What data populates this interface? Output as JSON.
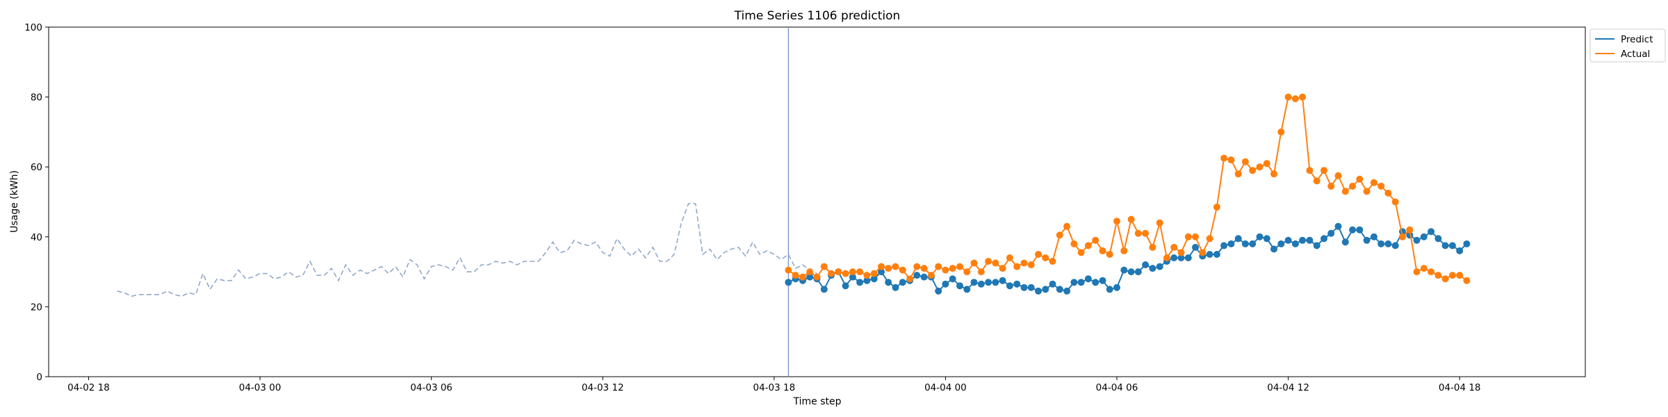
{
  "chart_data": {
    "type": "line",
    "title": "Time Series 1106 prediction",
    "xlabel": "Time step",
    "ylabel": "Usage (kWh)",
    "ylim": [
      0,
      100
    ],
    "yticks": [
      0,
      20,
      40,
      60,
      80,
      100
    ],
    "xlim": [
      "2024-04-02 16:36",
      "2024-04-04 22:24"
    ],
    "xticks": [
      {
        "t": "2024-04-02 18:00",
        "label": "04-02 18"
      },
      {
        "t": "2024-04-03 00:00",
        "label": "04-03 00"
      },
      {
        "t": "2024-04-03 06:00",
        "label": "04-03 06"
      },
      {
        "t": "2024-04-03 12:00",
        "label": "04-03 12"
      },
      {
        "t": "2024-04-03 18:00",
        "label": "04-03 18"
      },
      {
        "t": "2024-04-04 00:00",
        "label": "04-04 00"
      },
      {
        "t": "2024-04-04 06:00",
        "label": "04-04 06"
      },
      {
        "t": "2024-04-04 12:00",
        "label": "04-04 12"
      },
      {
        "t": "2024-04-04 18:00",
        "label": "04-04 18"
      }
    ],
    "vline": "2024-04-03 18:30",
    "legend_position": "upper-right-outside",
    "history": {
      "start": "2024-04-02 19:00",
      "step_minutes": 15,
      "color": "#8fa8c8",
      "style": "dashed",
      "values": [
        24.5,
        24,
        23,
        23.5,
        23.5,
        23.5,
        23.5,
        24.5,
        23.5,
        23,
        24,
        23.5,
        29.5,
        25,
        28,
        27.5,
        27.5,
        30.5,
        28,
        28.5,
        29.5,
        29.5,
        28,
        28.5,
        30,
        28.5,
        29,
        33,
        29,
        29,
        31,
        27.5,
        32,
        29,
        30.5,
        29.5,
        30.5,
        31.5,
        29.5,
        31.5,
        28.5,
        33.5,
        32,
        28,
        31.5,
        32,
        31.5,
        30.5,
        34,
        30,
        30,
        32,
        32,
        33,
        32.5,
        33,
        32,
        33,
        33,
        33,
        35.5,
        38.5,
        35.5,
        36,
        39,
        38,
        37.5,
        38.5,
        35.5,
        34.5,
        39.5,
        36.5,
        34.5,
        36.5,
        34,
        37,
        33,
        33,
        35,
        44,
        49.5,
        49.5,
        35,
        36.5,
        33.5,
        35.5,
        36.5,
        37,
        34.5,
        38.5,
        35,
        36,
        35,
        33.5,
        35,
        31,
        32,
        30.5,
        29.5
      ]
    },
    "series": [
      {
        "name": "Predict",
        "color": "#1f77b4",
        "start": "2024-04-03 18:30",
        "step_minutes": 15,
        "values": [
          27,
          28,
          27.5,
          28.5,
          28,
          25,
          29,
          30,
          26,
          28.5,
          27,
          27.5,
          28,
          30,
          27,
          25.5,
          27,
          27.5,
          29,
          28.5,
          28.5,
          24.5,
          26.5,
          28,
          26,
          25,
          27,
          26.5,
          27,
          27,
          27.5,
          26,
          26.5,
          25.5,
          25.5,
          24.5,
          25,
          26.5,
          25,
          24.5,
          27,
          27,
          28,
          27,
          27.5,
          25,
          25.5,
          30.5,
          30,
          30,
          32,
          31,
          31.5,
          33,
          34,
          34,
          34,
          37,
          34.5,
          35,
          35,
          37.5,
          38,
          39.5,
          38,
          38,
          40,
          39.5,
          36.5,
          38,
          39,
          38,
          39,
          39,
          37.5,
          39.5,
          41,
          43,
          38.5,
          42,
          42,
          39,
          40,
          38,
          38,
          37.5,
          41.5,
          40.5,
          39,
          40,
          41.5,
          39.5,
          37.5,
          37.5,
          36,
          38
        ]
      },
      {
        "name": "Actual",
        "color": "#ff7f0e",
        "start": "2024-04-03 18:30",
        "step_minutes": 15,
        "values": [
          30.5,
          29,
          28.5,
          30,
          28.5,
          31.5,
          29.5,
          30,
          29.5,
          30,
          30,
          29,
          29.5,
          31.5,
          31,
          31.5,
          30.5,
          28,
          31.5,
          31,
          29,
          31.5,
          30.5,
          31,
          31.5,
          30,
          32.5,
          30,
          33,
          32.5,
          31,
          34,
          31.5,
          32.5,
          32,
          35,
          34,
          33,
          40.5,
          43,
          38,
          35.5,
          37.5,
          39,
          36,
          35,
          44.5,
          36,
          45,
          41,
          41,
          37,
          44,
          34,
          37,
          35.5,
          40,
          40,
          35.5,
          39.5,
          48.5,
          62.5,
          62,
          58,
          61.5,
          59,
          60,
          61,
          58,
          70,
          80,
          79.5,
          80,
          59,
          56,
          59,
          54.5,
          57.5,
          53,
          54.5,
          56.5,
          53,
          55.5,
          54.5,
          52.5,
          50,
          40,
          42,
          30,
          31,
          30,
          29,
          28,
          29,
          29,
          27.5
        ]
      }
    ]
  }
}
